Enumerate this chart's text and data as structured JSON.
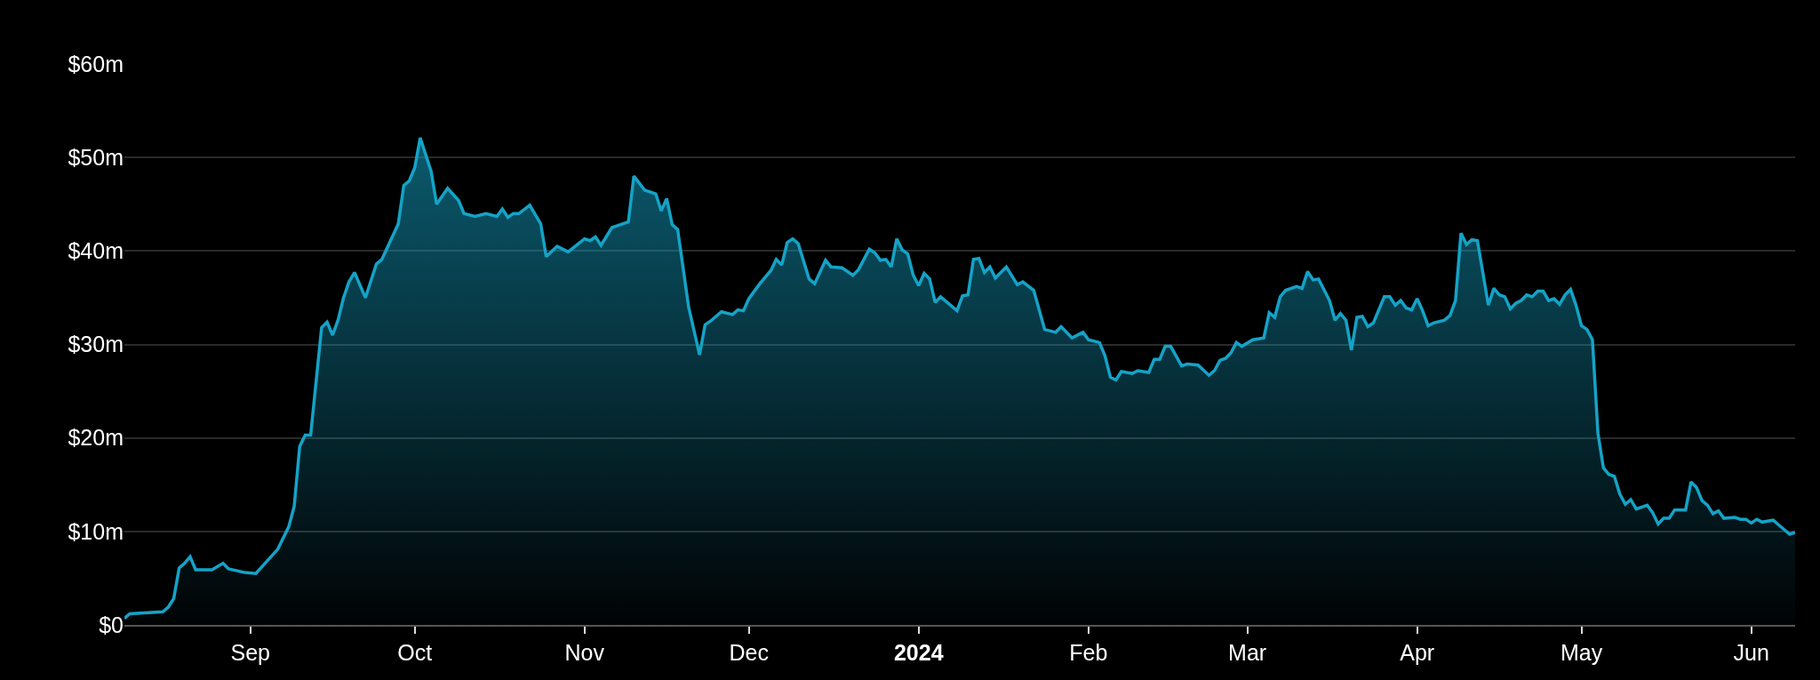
{
  "chart_data": {
    "type": "area",
    "x": [
      "2023-08-09",
      "2023-08-10",
      "2023-08-16",
      "2023-08-17",
      "2023-08-18",
      "2023-08-19",
      "2023-08-20",
      "2023-08-21",
      "2023-08-22",
      "2023-08-25",
      "2023-08-27",
      "2023-08-28",
      "2023-08-31",
      "2023-09-02",
      "2023-09-06",
      "2023-09-08",
      "2023-09-09",
      "2023-09-10",
      "2023-09-11",
      "2023-09-12",
      "2023-09-14",
      "2023-09-15",
      "2023-09-16",
      "2023-09-17",
      "2023-09-18",
      "2023-09-19",
      "2023-09-20",
      "2023-09-22",
      "2023-09-24",
      "2023-09-25",
      "2023-09-28",
      "2023-09-29",
      "2023-09-30",
      "2023-10-01",
      "2023-10-02",
      "2023-10-04",
      "2023-10-05",
      "2023-10-07",
      "2023-10-09",
      "2023-10-10",
      "2023-10-12",
      "2023-10-14",
      "2023-10-16",
      "2023-10-17",
      "2023-10-18",
      "2023-10-19",
      "2023-10-20",
      "2023-10-22",
      "2023-10-24",
      "2023-10-25",
      "2023-10-27",
      "2023-10-29",
      "2023-11-01",
      "2023-11-02",
      "2023-11-03",
      "2023-11-04",
      "2023-11-06",
      "2023-11-07",
      "2023-11-09",
      "2023-11-10",
      "2023-11-12",
      "2023-11-14",
      "2023-11-15",
      "2023-11-16",
      "2023-11-17",
      "2023-11-18",
      "2023-11-20",
      "2023-11-22",
      "2023-11-23",
      "2023-11-24",
      "2023-11-26",
      "2023-11-28",
      "2023-11-29",
      "2023-11-30",
      "2023-12-01",
      "2023-12-03",
      "2023-12-05",
      "2023-12-06",
      "2023-12-07",
      "2023-12-08",
      "2023-12-09",
      "2023-12-10",
      "2023-12-12",
      "2023-12-13",
      "2023-12-15",
      "2023-12-16",
      "2023-12-18",
      "2023-12-19",
      "2023-12-20",
      "2023-12-21",
      "2023-12-23",
      "2023-12-24",
      "2023-12-25",
      "2023-12-26",
      "2023-12-27",
      "2023-12-28",
      "2023-12-29",
      "2023-12-30",
      "2023-12-31",
      "2024-01-01",
      "2024-01-02",
      "2024-01-03",
      "2024-01-04",
      "2024-01-05",
      "2024-01-08",
      "2024-01-09",
      "2024-01-10",
      "2024-01-11",
      "2024-01-12",
      "2024-01-13",
      "2024-01-14",
      "2024-01-15",
      "2024-01-17",
      "2024-01-19",
      "2024-01-20",
      "2024-01-22",
      "2024-01-24",
      "2024-01-26",
      "2024-01-27",
      "2024-01-29",
      "2024-01-31",
      "2024-02-01",
      "2024-02-03",
      "2024-02-04",
      "2024-02-05",
      "2024-02-06",
      "2024-02-07",
      "2024-02-09",
      "2024-02-10",
      "2024-02-12",
      "2024-02-13",
      "2024-02-14",
      "2024-02-15",
      "2024-02-16",
      "2024-02-18",
      "2024-02-19",
      "2024-02-21",
      "2024-02-23",
      "2024-02-24",
      "2024-02-25",
      "2024-02-26",
      "2024-02-27",
      "2024-02-28",
      "2024-02-29",
      "2024-03-02",
      "2024-03-04",
      "2024-03-05",
      "2024-03-06",
      "2024-03-07",
      "2024-03-08",
      "2024-03-10",
      "2024-03-11",
      "2024-03-12",
      "2024-03-13",
      "2024-03-14",
      "2024-03-16",
      "2024-03-17",
      "2024-03-18",
      "2024-03-19",
      "2024-03-20",
      "2024-03-21",
      "2024-03-22",
      "2024-03-23",
      "2024-03-24",
      "2024-03-26",
      "2024-03-27",
      "2024-03-28",
      "2024-03-29",
      "2024-03-30",
      "2024-03-31",
      "2024-04-01",
      "2024-04-02",
      "2024-04-03",
      "2024-04-04",
      "2024-04-06",
      "2024-04-07",
      "2024-04-08",
      "2024-04-09",
      "2024-04-10",
      "2024-04-11",
      "2024-04-12",
      "2024-04-14",
      "2024-04-15",
      "2024-04-16",
      "2024-04-17",
      "2024-04-18",
      "2024-04-19",
      "2024-04-20",
      "2024-04-21",
      "2024-04-22",
      "2024-04-23",
      "2024-04-24",
      "2024-04-25",
      "2024-04-26",
      "2024-04-27",
      "2024-04-28",
      "2024-04-29",
      "2024-04-30",
      "2024-05-01",
      "2024-05-02",
      "2024-05-03",
      "2024-05-04",
      "2024-05-05",
      "2024-05-06",
      "2024-05-07",
      "2024-05-08",
      "2024-05-09",
      "2024-05-10",
      "2024-05-11",
      "2024-05-13",
      "2024-05-14",
      "2024-05-15",
      "2024-05-16",
      "2024-05-17",
      "2024-05-18",
      "2024-05-20",
      "2024-05-21",
      "2024-05-22",
      "2024-05-23",
      "2024-05-24",
      "2024-05-25",
      "2024-05-26",
      "2024-05-27",
      "2024-05-29",
      "2024-05-30",
      "2024-05-31",
      "2024-06-01",
      "2024-06-02",
      "2024-06-03",
      "2024-06-05",
      "2024-06-06",
      "2024-06-08",
      "2024-06-09"
    ],
    "series": [
      {
        "color": "#14a3c7",
        "values": [
          0.7,
          1.2,
          1.4,
          1.9,
          2.8,
          6.1,
          6.6,
          7.3,
          5.9,
          5.9,
          6.6,
          6.0,
          5.6,
          5.5,
          8.1,
          10.5,
          12.7,
          19.1,
          20.3,
          20.3,
          31.8,
          32.4,
          31.0,
          32.6,
          35.0,
          36.7,
          37.7,
          35.0,
          38.6,
          39.1,
          42.9,
          47.0,
          47.5,
          48.9,
          52.1,
          48.5,
          45.0,
          46.7,
          45.4,
          44.0,
          43.7,
          44.0,
          43.7,
          44.5,
          43.6,
          44.0,
          44.0,
          44.9,
          42.9,
          39.4,
          40.5,
          39.9,
          41.3,
          41.1,
          41.5,
          40.6,
          42.5,
          42.7,
          43.1,
          48.0,
          46.5,
          46.1,
          44.3,
          45.6,
          42.8,
          42.3,
          34.0,
          28.9,
          32.1,
          32.5,
          33.5,
          33.2,
          33.7,
          33.6,
          34.9,
          36.5,
          37.9,
          39.1,
          38.5,
          40.9,
          41.3,
          40.8,
          37.0,
          36.5,
          39.0,
          38.3,
          38.2,
          37.8,
          37.4,
          38.0,
          40.2,
          39.8,
          39.0,
          39.1,
          38.3,
          41.3,
          40.1,
          39.7,
          37.4,
          36.3,
          37.6,
          37.0,
          34.5,
          35.1,
          33.6,
          35.2,
          35.3,
          39.1,
          39.2,
          37.7,
          38.3,
          37.1,
          38.3,
          36.4,
          36.7,
          35.8,
          31.6,
          31.3,
          31.9,
          30.7,
          31.3,
          30.5,
          30.2,
          28.8,
          26.5,
          26.2,
          27.1,
          26.9,
          27.2,
          27.0,
          28.4,
          28.4,
          29.8,
          29.8,
          27.7,
          27.9,
          27.8,
          26.7,
          27.2,
          28.3,
          28.5,
          29.1,
          30.2,
          29.8,
          30.5,
          30.7,
          33.4,
          32.9,
          35.1,
          35.8,
          36.2,
          36.0,
          37.8,
          36.9,
          37.0,
          34.7,
          32.6,
          33.3,
          32.6,
          29.4,
          32.9,
          33.0,
          31.9,
          32.3,
          35.1,
          35.1,
          34.2,
          34.7,
          33.9,
          33.7,
          34.9,
          33.6,
          32.0,
          32.3,
          32.6,
          33.1,
          34.7,
          41.9,
          40.7,
          41.2,
          41.1,
          34.2,
          36.0,
          35.3,
          35.1,
          33.8,
          34.4,
          34.7,
          35.3,
          35.1,
          35.7,
          35.7,
          34.7,
          34.9,
          34.3,
          35.3,
          35.9,
          34.2,
          32.0,
          31.6,
          30.5,
          20.5,
          16.8,
          16.1,
          15.9,
          14.0,
          12.9,
          13.4,
          12.4,
          12.8,
          12.0,
          10.8,
          11.4,
          11.4,
          12.3,
          12.3,
          15.3,
          14.7,
          13.3,
          12.8,
          11.9,
          12.2,
          11.4,
          11.5,
          11.3,
          11.3,
          10.9,
          11.3,
          11.0,
          11.2,
          10.7,
          9.7,
          9.9
        ]
      }
    ],
    "xlim": [
      "2023-08-09",
      "2024-06-09"
    ],
    "xticks": [
      {
        "value": "2023-09-01",
        "label": "Sep"
      },
      {
        "value": "2023-10-01",
        "label": "Oct"
      },
      {
        "value": "2023-11-01",
        "label": "Nov"
      },
      {
        "value": "2023-12-01",
        "label": "Dec"
      },
      {
        "value": "2024-01-01",
        "label": "2024"
      },
      {
        "value": "2024-02-01",
        "label": "Feb"
      },
      {
        "value": "2024-03-01",
        "label": "Mar"
      },
      {
        "value": "2024-04-01",
        "label": "Apr"
      },
      {
        "value": "2024-05-01",
        "label": "May"
      },
      {
        "value": "2024-06-01",
        "label": "Jun"
      }
    ],
    "ylim": [
      0,
      60
    ],
    "yticks": [
      {
        "value": 0,
        "label": "$0"
      },
      {
        "value": 10,
        "label": "$10m"
      },
      {
        "value": 20,
        "label": "$20m"
      },
      {
        "value": 30,
        "label": "$30m"
      },
      {
        "value": 40,
        "label": "$40m"
      },
      {
        "value": 50,
        "label": "$50m"
      },
      {
        "value": 60,
        "label": "$60m"
      }
    ],
    "grid": "y"
  }
}
